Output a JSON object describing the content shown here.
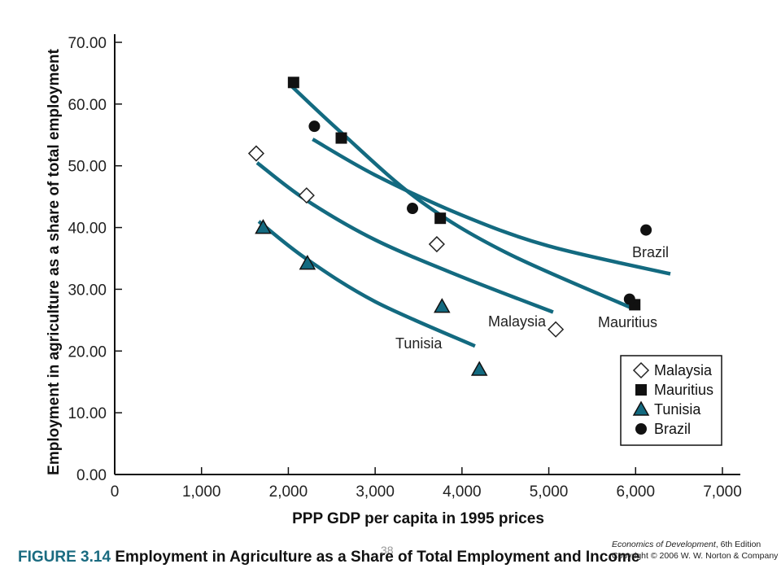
{
  "chart_data": {
    "type": "scatter",
    "xlabel": "PPP GDP per capita in 1995 prices",
    "ylabel": "Employment in agriculture as a share of total employment",
    "xlim": [
      0,
      7000
    ],
    "ylim": [
      0,
      70
    ],
    "x_ticks": [
      "0",
      "1,000",
      "2,000",
      "3,000",
      "4,000",
      "5,000",
      "6,000",
      "7,000"
    ],
    "y_ticks": [
      "0.00",
      "10.00",
      "20.00",
      "30.00",
      "40.00",
      "50.00",
      "60.00",
      "70.00"
    ],
    "legend_position": "bottom-right",
    "grid": false,
    "series": [
      {
        "name": "Malaysia",
        "marker": "diamond-open",
        "curve_label": "Malaysia",
        "points": [
          [
            1630,
            52.0
          ],
          [
            2210,
            45.2
          ],
          [
            3710,
            37.3
          ],
          [
            5080,
            23.5
          ]
        ],
        "trend": [
          [
            1640,
            50.5
          ],
          [
            2200,
            44.5
          ],
          [
            3000,
            38.0
          ],
          [
            4000,
            32.0
          ],
          [
            5050,
            26.3
          ]
        ]
      },
      {
        "name": "Mauritius",
        "marker": "square",
        "curve_label": "Mauritius",
        "points": [
          [
            2060,
            63.5
          ],
          [
            2610,
            54.5
          ],
          [
            3750,
            41.5
          ],
          [
            5990,
            27.5
          ]
        ],
        "trend": [
          [
            2030,
            63.0
          ],
          [
            2600,
            55.5
          ],
          [
            3500,
            44.5
          ],
          [
            4500,
            36.0
          ],
          [
            5950,
            27.0
          ]
        ]
      },
      {
        "name": "Tunisia",
        "marker": "triangle",
        "curve_label": "Tunisia",
        "points": [
          [
            1710,
            40.0
          ],
          [
            2220,
            34.2
          ],
          [
            3770,
            27.2
          ],
          [
            4200,
            17.0
          ]
        ],
        "trend": [
          [
            1660,
            41.0
          ],
          [
            2200,
            35.0
          ],
          [
            3000,
            28.0
          ],
          [
            4150,
            20.8
          ]
        ]
      },
      {
        "name": "Brazil",
        "marker": "circle",
        "curve_label": "Brazil",
        "points": [
          [
            2300,
            56.4
          ],
          [
            3430,
            43.1
          ],
          [
            5930,
            28.4
          ],
          [
            6120,
            39.6
          ]
        ],
        "trend": [
          [
            2280,
            54.3
          ],
          [
            3000,
            48.5
          ],
          [
            4000,
            42.0
          ],
          [
            5000,
            37.0
          ],
          [
            6400,
            32.5
          ]
        ]
      }
    ],
    "colors": {
      "curve": "#136a80",
      "marker_fill": "#111111",
      "triangle_fill": "#136a80",
      "axis": "#111111",
      "figure_number": "#1a6b80"
    }
  },
  "footer": {
    "figure_number": "FIGURE 3.14",
    "caption": "Employment in Agriculture as a Share of Total Employment and Income",
    "book_title": "Economics of Development",
    "edition": ", 6th Edition",
    "copyright": "Copyright © 2006 W. W. Norton & Company",
    "page_number": "38"
  }
}
